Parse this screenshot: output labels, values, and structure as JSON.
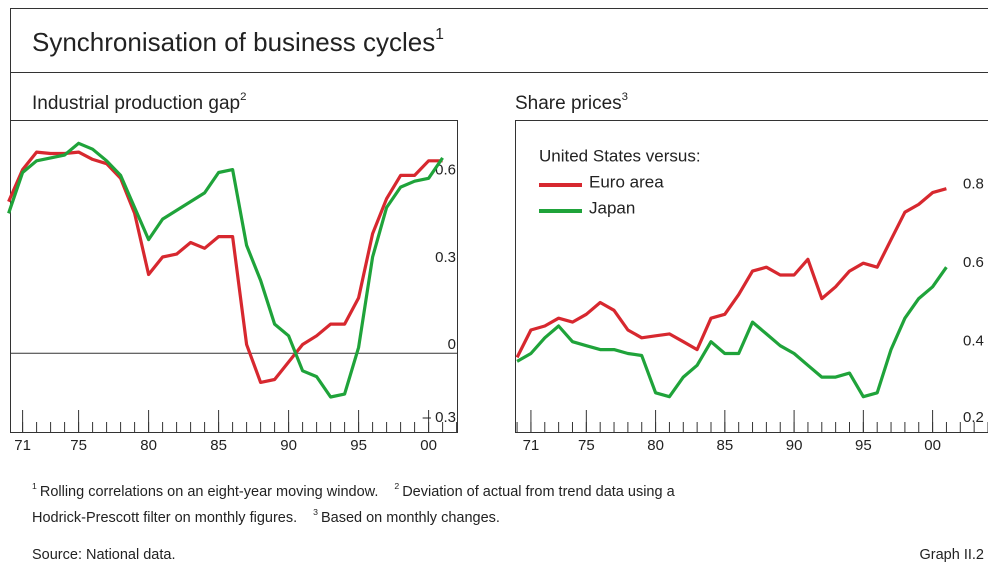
{
  "title": "Synchronisation of business cycles",
  "title_note": "1",
  "chart_data": [
    {
      "type": "line",
      "title": "Industrial production gap",
      "title_note": "2",
      "x": [
        1970,
        1971,
        1972,
        1973,
        1974,
        1975,
        1976,
        1977,
        1978,
        1979,
        1980,
        1981,
        1982,
        1983,
        1984,
        1985,
        1986,
        1987,
        1988,
        1989,
        1990,
        1991,
        1992,
        1993,
        1994,
        1995,
        1996,
        1997,
        1998,
        1999,
        2000,
        2001
      ],
      "series": [
        {
          "color": "#d7282f",
          "values": [
            0.52,
            0.63,
            0.69,
            0.685,
            0.685,
            0.69,
            0.665,
            0.65,
            0.6,
            0.48,
            0.27,
            0.33,
            0.34,
            0.38,
            0.36,
            0.4,
            0.4,
            0.03,
            -0.1,
            -0.09,
            -0.03,
            0.03,
            0.06,
            0.1,
            0.1,
            0.19,
            0.41,
            0.53,
            0.61,
            0.61,
            0.66,
            0.66
          ]
        },
        {
          "color": "#1fa33a",
          "values": [
            0.48,
            0.62,
            0.66,
            0.67,
            0.68,
            0.72,
            0.7,
            0.66,
            0.61,
            0.5,
            0.39,
            0.46,
            0.49,
            0.52,
            0.55,
            0.62,
            0.63,
            0.37,
            0.25,
            0.1,
            0.06,
            -0.06,
            -0.08,
            -0.15,
            -0.14,
            0.02,
            0.33,
            0.5,
            0.57,
            0.59,
            0.6,
            0.67
          ]
        }
      ],
      "xlim": [
        1970.1,
        2002.1
      ],
      "xticks": [
        {
          "value": 1971,
          "label": "71"
        },
        {
          "value": 1975,
          "label": "75"
        },
        {
          "value": 1980,
          "label": "80"
        },
        {
          "value": 1985,
          "label": "85"
        },
        {
          "value": 1990,
          "label": "90"
        },
        {
          "value": 1995,
          "label": "95"
        },
        {
          "value": 2000,
          "label": "00"
        }
      ],
      "ylim": [
        -0.27,
        0.8
      ],
      "yticks": [
        {
          "value": -0.3,
          "label": "– 0.3"
        },
        0,
        0.3,
        0.6
      ],
      "zero_line": true
    },
    {
      "type": "line",
      "title": "Share prices",
      "title_note": "3",
      "legend_title": "United States versus:",
      "x": [
        1970,
        1971,
        1972,
        1973,
        1974,
        1975,
        1976,
        1977,
        1978,
        1979,
        1980,
        1981,
        1982,
        1983,
        1984,
        1985,
        1986,
        1987,
        1988,
        1989,
        1990,
        1991,
        1992,
        1993,
        1994,
        1995,
        1996,
        1997,
        1998,
        1999,
        2000,
        2001
      ],
      "series": [
        {
          "name": "Euro area",
          "color": "#d7282f",
          "values": [
            0.38,
            0.45,
            0.46,
            0.48,
            0.47,
            0.49,
            0.52,
            0.5,
            0.45,
            0.43,
            0.435,
            0.44,
            0.42,
            0.4,
            0.48,
            0.49,
            0.54,
            0.6,
            0.61,
            0.59,
            0.59,
            0.63,
            0.53,
            0.56,
            0.6,
            0.62,
            0.61,
            0.68,
            0.75,
            0.77,
            0.8,
            0.81
          ]
        },
        {
          "name": "Japan",
          "color": "#1fa33a",
          "values": [
            0.37,
            0.39,
            0.43,
            0.46,
            0.42,
            0.41,
            0.4,
            0.4,
            0.39,
            0.385,
            0.29,
            0.28,
            0.33,
            0.36,
            0.42,
            0.39,
            0.39,
            0.47,
            0.44,
            0.41,
            0.39,
            0.36,
            0.33,
            0.33,
            0.34,
            0.28,
            0.29,
            0.4,
            0.48,
            0.53,
            0.56,
            0.61
          ]
        }
      ],
      "xlim": [
        1969.85,
        2004
      ],
      "xticks": [
        {
          "value": 1971,
          "label": "71"
        },
        {
          "value": 1975,
          "label": "75"
        },
        {
          "value": 1980,
          "label": "80"
        },
        {
          "value": 1985,
          "label": "85"
        },
        {
          "value": 1990,
          "label": "90"
        },
        {
          "value": 1995,
          "label": "95"
        },
        {
          "value": 2000,
          "label": "00"
        }
      ],
      "ylim": [
        0.19,
        0.985
      ],
      "yticks": [
        0.2,
        0.4,
        0.6,
        0.8
      ],
      "legend": "top-left"
    }
  ],
  "footnotes": [
    {
      "mark": "1",
      "text": "Rolling correlations on an eight-year moving window."
    },
    {
      "mark": "2",
      "text": "Deviation of actual from trend data using a"
    },
    {
      "mark": "3",
      "text": "Based on monthly changes."
    }
  ],
  "footnote_cont": "Hodrick-Prescott filter on monthly figures.",
  "source": "Source: National data.",
  "graph_id": "Graph II.2"
}
